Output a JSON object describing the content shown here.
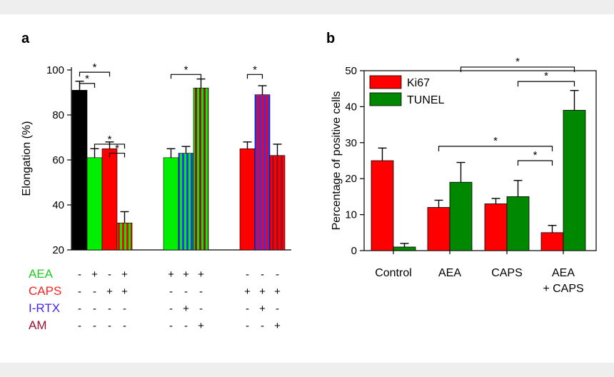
{
  "colors": {
    "black": "#000000",
    "green": "#00ee00",
    "red": "#ff0000",
    "blue": "#3333ff",
    "darkred": "#a01025",
    "darkgreen": "#008800",
    "aea_label": "#22cc22",
    "caps_label": "#ff2222",
    "irtx_label": "#4422ee",
    "am_label": "#991133"
  },
  "chart_data": [
    {
      "panel_label": "a",
      "type": "bar",
      "ylabel": "Elongation (%)",
      "ylim": [
        20,
        100
      ],
      "yticks": [
        "20",
        "40",
        "60",
        "80",
        "100"
      ],
      "groups": [
        {
          "bars": [
            {
              "value": 91,
              "error": 4,
              "fill": "black"
            },
            {
              "value": 61,
              "error": 4,
              "fill": "green"
            },
            {
              "value": 65,
              "error": 3,
              "fill": "red"
            },
            {
              "value": 32,
              "error": 5,
              "fill": "green-red-stripes"
            }
          ]
        },
        {
          "bars": [
            {
              "value": 61,
              "error": 4,
              "fill": "green"
            },
            {
              "value": 63,
              "error": 3,
              "fill": "green-blue-stripes"
            },
            {
              "value": 92,
              "error": 4,
              "fill": "green-darkred-stripes"
            }
          ]
        },
        {
          "bars": [
            {
              "value": 65,
              "error": 3,
              "fill": "red"
            },
            {
              "value": 89,
              "error": 4,
              "fill": "red-blue-stripes"
            },
            {
              "value": 62,
              "error": 5,
              "fill": "red-darkred-stripes"
            }
          ]
        }
      ],
      "treatments": [
        {
          "name": "AEA",
          "color_key": "aea_label",
          "signs": [
            "-",
            "+",
            "-",
            "+",
            "+",
            "+",
            "+",
            "-",
            "-",
            "-"
          ]
        },
        {
          "name": "CAPS",
          "color_key": "caps_label",
          "signs": [
            "-",
            "-",
            "+",
            "+",
            "-",
            "-",
            "-",
            "+",
            "+",
            "+"
          ]
        },
        {
          "name": "I-RTX",
          "color_key": "irtx_label",
          "signs": [
            "-",
            "-",
            "-",
            "-",
            "-",
            "+",
            "-",
            "-",
            "+",
            "-"
          ]
        },
        {
          "name": "AM",
          "color_key": "am_label",
          "signs": [
            "-",
            "-",
            "-",
            "-",
            "-",
            "-",
            "+",
            "-",
            "-",
            "+"
          ]
        }
      ],
      "significance": [
        {
          "from": 0,
          "to": 2,
          "y": 99,
          "label": "*"
        },
        {
          "from": 0,
          "to": 1,
          "y": 94,
          "label": "*"
        },
        {
          "from": 1,
          "to": 3,
          "y": 67,
          "label": "*"
        },
        {
          "from": 2,
          "to": 3,
          "y": 63,
          "label": "*"
        },
        {
          "from": 4,
          "to": 6,
          "y": 98,
          "label": "*"
        },
        {
          "from": 7,
          "to": 8,
          "y": 98,
          "label": "*"
        }
      ]
    },
    {
      "panel_label": "b",
      "type": "bar",
      "ylabel": "Percentage of positive cells",
      "ylim": [
        0,
        50
      ],
      "yticks": [
        "0",
        "10",
        "20",
        "30",
        "40",
        "50"
      ],
      "categories": [
        "Control",
        "AEA",
        "CAPS",
        "AEA\n+ CAPS"
      ],
      "series": [
        {
          "name": "Ki67",
          "color_key": "red",
          "values": [
            25,
            12,
            13,
            5
          ],
          "errors": [
            3.5,
            2,
            1.5,
            2
          ]
        },
        {
          "name": "TUNEL",
          "color_key": "darkgreen",
          "values": [
            1,
            19,
            15,
            39
          ],
          "errors": [
            1,
            5.5,
            4.5,
            5.5
          ]
        }
      ],
      "legend": "top-left",
      "significance": [
        {
          "from_cat": 1,
          "to_cat": 3,
          "y": 29,
          "label": "*"
        },
        {
          "from_cat": 2,
          "to_cat": 3,
          "y": 25,
          "label": "*"
        },
        {
          "from_cat": 1,
          "to_cat": 3,
          "y": 51,
          "label": "*"
        },
        {
          "from_cat": 2,
          "to_cat": 3,
          "y": 47,
          "label": "*"
        }
      ]
    }
  ]
}
